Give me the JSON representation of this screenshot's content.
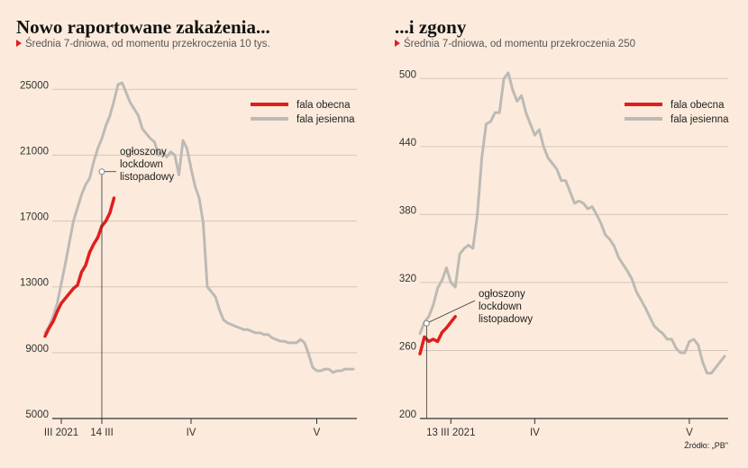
{
  "source": "Źródło: „PB\"",
  "colors": {
    "current": "#e01e1e",
    "autumn": "#bdbab5",
    "marker": "#e01e1e",
    "axis": "#333333"
  },
  "chart_data": [
    {
      "type": "line",
      "title": "Nowo raportowane zakażenia...",
      "subtitle": "Średnia 7-dniowa, od momentu przekroczenia 10 tys.",
      "ylim": [
        5000,
        26000
      ],
      "yticks": [
        5000,
        9000,
        13000,
        17000,
        21000,
        25000
      ],
      "ytick_labels": [
        "5000",
        "9000",
        "13000",
        "17000",
        "21000",
        "25000"
      ],
      "xlim": [
        0,
        80
      ],
      "xticks": [
        {
          "x": 4,
          "label": "III 2021"
        },
        {
          "x": 14,
          "label": "14 III"
        },
        {
          "x": 36,
          "label": "IV"
        },
        {
          "x": 67,
          "label": "V"
        }
      ],
      "legend": [
        "fala obecna",
        "fala jesienna"
      ],
      "annotation": {
        "x": 14,
        "y": 20000,
        "lines": [
          "ogłoszony",
          "lockdown",
          "listopadowy"
        ]
      },
      "series": [
        {
          "name": "fala obecna",
          "x": [
            0,
            1,
            2,
            3,
            4,
            5,
            6,
            7,
            8,
            9,
            10,
            11,
            12,
            13,
            14,
            15,
            16,
            17
          ],
          "y": [
            10000,
            10500,
            10900,
            11500,
            12000,
            12300,
            12600,
            12900,
            13100,
            13900,
            14300,
            15100,
            15600,
            16000,
            16700,
            17000,
            17500,
            18400
          ]
        },
        {
          "name": "fala jesienna",
          "x": [
            0,
            1,
            2,
            3,
            4,
            5,
            6,
            7,
            8,
            9,
            10,
            11,
            12,
            13,
            14,
            15,
            16,
            17,
            18,
            19,
            20,
            21,
            22,
            23,
            24,
            25,
            26,
            27,
            28,
            29,
            30,
            31,
            32,
            33,
            34,
            35,
            36,
            37,
            38,
            39,
            40,
            41,
            42,
            43,
            44,
            45,
            46,
            47,
            48,
            49,
            50,
            51,
            52,
            53,
            54,
            55,
            56,
            57,
            58,
            59,
            60,
            61,
            62,
            63,
            64,
            65,
            66,
            67,
            68,
            69,
            70,
            71,
            72,
            73,
            74,
            75,
            76
          ],
          "y": [
            10200,
            10600,
            11200,
            12000,
            13200,
            14400,
            15700,
            17000,
            17800,
            18600,
            19200,
            19600,
            20600,
            21400,
            22000,
            22800,
            23400,
            24300,
            25300,
            25400,
            24800,
            24200,
            23800,
            23400,
            22600,
            22300,
            22000,
            21800,
            21000,
            21200,
            20900,
            21200,
            21000,
            19800,
            21900,
            21400,
            20200,
            19100,
            18400,
            16900,
            13000,
            12700,
            12400,
            11600,
            11000,
            10800,
            10700,
            10600,
            10500,
            10400,
            10400,
            10300,
            10200,
            10200,
            10100,
            10100,
            9900,
            9800,
            9700,
            9700,
            9600,
            9600,
            9600,
            9800,
            9600,
            8900,
            8100,
            7900,
            7900,
            8000,
            8000,
            7800,
            7900,
            7900,
            8000,
            8000,
            8000
          ]
        }
      ]
    },
    {
      "type": "line",
      "title": "...i zgony",
      "subtitle": "Średnia 7-dniowa, od momentu przekroczenia 250",
      "ylim": [
        200,
        505
      ],
      "yticks": [
        200,
        260,
        320,
        380,
        440,
        500
      ],
      "ytick_labels": [
        "200",
        "260",
        "320",
        "380",
        "440",
        "500"
      ],
      "xlim": [
        0,
        80
      ],
      "xticks": [
        {
          "x": 7,
          "label": "13 III 2021"
        },
        {
          "x": 26,
          "label": "IV"
        },
        {
          "x": 61,
          "label": "V"
        }
      ],
      "legend": [
        "fala obecna",
        "fala jesienna"
      ],
      "annotation": {
        "x": 1.5,
        "y": 284,
        "lines": [
          "ogłoszony",
          "lockdown",
          "listopadowy"
        ]
      },
      "series": [
        {
          "name": "fala obecna",
          "x": [
            0,
            1,
            2,
            3,
            4,
            5,
            6,
            7,
            8
          ],
          "y": [
            257,
            272,
            268,
            270,
            268,
            276,
            280,
            285,
            290
          ]
        },
        {
          "name": "fala jesienna",
          "x": [
            0,
            1,
            2,
            3,
            4,
            5,
            6,
            7,
            8,
            9,
            10,
            11,
            12,
            13,
            14,
            15,
            16,
            17,
            18,
            19,
            20,
            21,
            22,
            23,
            24,
            25,
            26,
            27,
            28,
            29,
            30,
            31,
            32,
            33,
            34,
            35,
            36,
            37,
            38,
            39,
            40,
            41,
            42,
            43,
            44,
            45,
            46,
            47,
            48,
            49,
            50,
            51,
            52,
            53,
            54,
            55,
            56,
            57,
            58,
            59,
            60,
            61,
            62,
            63,
            64,
            65,
            66,
            67,
            68,
            69
          ],
          "y": [
            275,
            285,
            290,
            300,
            315,
            322,
            333,
            320,
            316,
            345,
            350,
            353,
            350,
            380,
            430,
            460,
            462,
            470,
            470,
            500,
            505,
            490,
            480,
            485,
            470,
            460,
            450,
            455,
            440,
            430,
            425,
            420,
            410,
            410,
            400,
            390,
            392,
            390,
            385,
            387,
            380,
            372,
            362,
            358,
            352,
            342,
            336,
            330,
            323,
            312,
            305,
            298,
            290,
            282,
            278,
            275,
            270,
            270,
            262,
            258,
            258,
            268,
            270,
            265,
            250,
            240,
            240,
            245,
            250,
            255
          ]
        }
      ]
    }
  ]
}
